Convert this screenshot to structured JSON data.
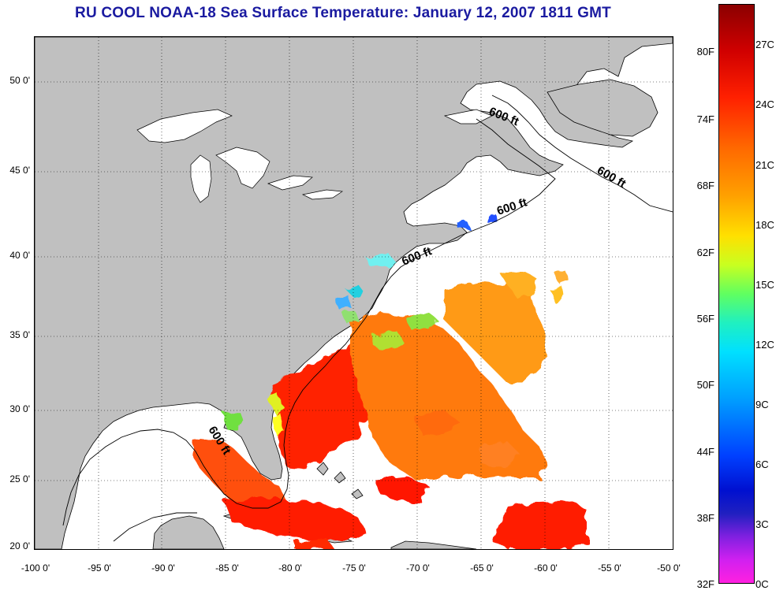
{
  "title": "RU COOL  NOAA-18  Sea Surface Temperature:  January 12, 2007 1811 GMT",
  "map": {
    "lon_ticks": [
      "-100 0'",
      "-95 0'",
      "-90 0'",
      "-85 0'",
      "-80 0'",
      "-75 0'",
      "-70 0'",
      "-65 0'",
      "-60 0'",
      "-55 0'",
      "-50 0'"
    ],
    "lat_ticks": [
      "50 0'",
      "45 0'",
      "40 0'",
      "35 0'",
      "30 0'",
      "25 0'",
      "20 0'"
    ],
    "contour_labels": [
      "600 ft",
      "600 ft",
      "600 ft",
      "600 ft",
      "600 ft"
    ],
    "land_color": "#c0c0c0",
    "no_data_color": "#ffffff"
  },
  "colorbar": {
    "fahrenheit_labels": [
      "80F",
      "74F",
      "68F",
      "62F",
      "56F",
      "50F",
      "44F",
      "38F",
      "32F"
    ],
    "celsius_labels": [
      "27C",
      "24C",
      "21C",
      "18C",
      "15C",
      "12C",
      "9C",
      "6C",
      "3C",
      "0C"
    ]
  }
}
